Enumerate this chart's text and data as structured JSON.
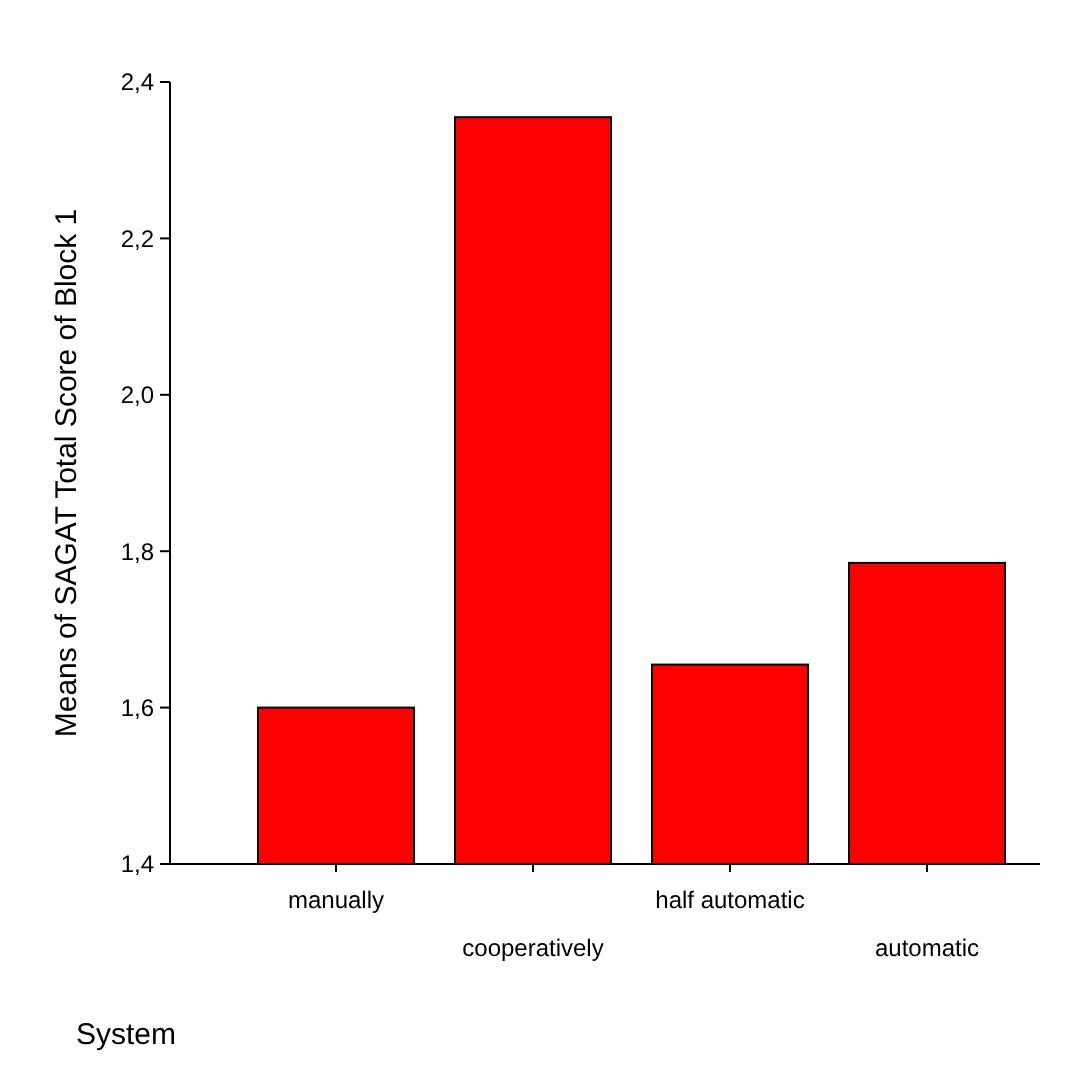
{
  "chart_data": {
    "type": "bar",
    "xlabel": "System",
    "ylabel": "Means of SAGAT Total Score of Block 1",
    "categories": [
      "manually",
      "cooperatively",
      "half automatic",
      "automatic"
    ],
    "values": [
      1.6,
      2.355,
      1.655,
      1.785
    ],
    "color": "#ff0000",
    "ylim": [
      1.4,
      2.4
    ],
    "yticks": [
      {
        "value": 1.4,
        "label": "1,4"
      },
      {
        "value": 1.6,
        "label": "1,6"
      },
      {
        "value": 1.8,
        "label": "1,8"
      },
      {
        "value": 2.0,
        "label": "2,0"
      },
      {
        "value": 2.2,
        "label": "2,2"
      },
      {
        "value": 2.4,
        "label": "2,4"
      }
    ],
    "grid": false
  }
}
